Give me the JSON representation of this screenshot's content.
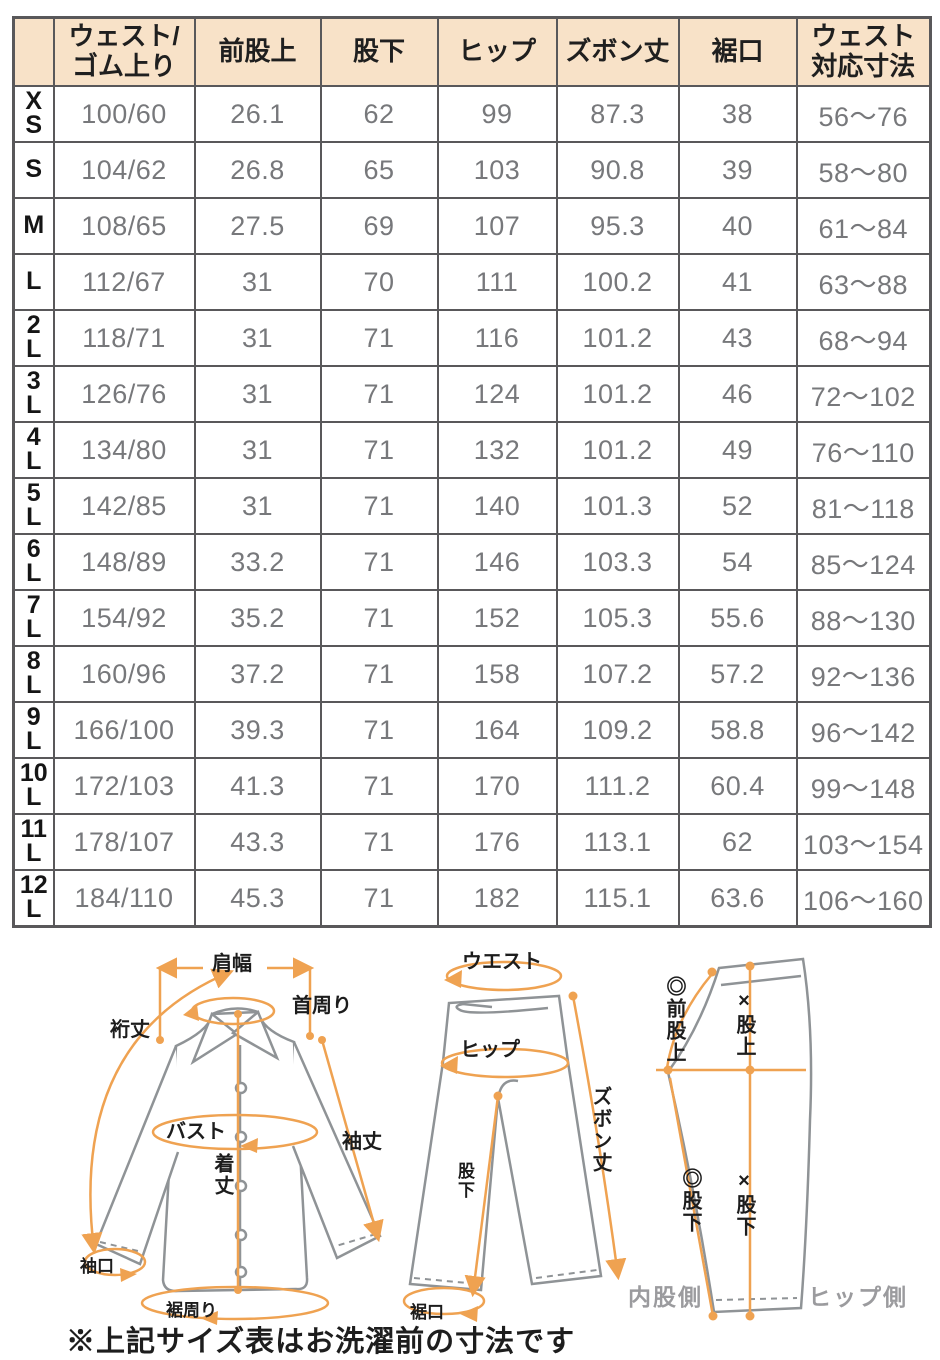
{
  "table": {
    "columns": [
      "",
      "ウェスト/\nゴム上り",
      "前股上",
      "股下",
      "ヒップ",
      "ズボン丈",
      "裾口",
      "ウェスト\n対応寸法"
    ],
    "rows": [
      {
        "size": "X\nS",
        "cells": [
          "100/60",
          "26.1",
          "62",
          "99",
          "87.3",
          "38",
          "56〜76"
        ]
      },
      {
        "size": "S",
        "cells": [
          "104/62",
          "26.8",
          "65",
          "103",
          "90.8",
          "39",
          "58〜80"
        ]
      },
      {
        "size": "M",
        "cells": [
          "108/65",
          "27.5",
          "69",
          "107",
          "95.3",
          "40",
          "61〜84"
        ]
      },
      {
        "size": "L",
        "cells": [
          "112/67",
          "31",
          "70",
          "111",
          "100.2",
          "41",
          "63〜88"
        ]
      },
      {
        "size": "2\nL",
        "cells": [
          "118/71",
          "31",
          "71",
          "116",
          "101.2",
          "43",
          "68〜94"
        ]
      },
      {
        "size": "3\nL",
        "cells": [
          "126/76",
          "31",
          "71",
          "124",
          "101.2",
          "46",
          "72〜102"
        ]
      },
      {
        "size": "4\nL",
        "cells": [
          "134/80",
          "31",
          "71",
          "132",
          "101.2",
          "49",
          "76〜110"
        ]
      },
      {
        "size": "5\nL",
        "cells": [
          "142/85",
          "31",
          "71",
          "140",
          "101.3",
          "52",
          "81〜118"
        ]
      },
      {
        "size": "6\nL",
        "cells": [
          "148/89",
          "33.2",
          "71",
          "146",
          "103.3",
          "54",
          "85〜124"
        ]
      },
      {
        "size": "7\nL",
        "cells": [
          "154/92",
          "35.2",
          "71",
          "152",
          "105.3",
          "55.6",
          "88〜130"
        ]
      },
      {
        "size": "8\nL",
        "cells": [
          "160/96",
          "37.2",
          "71",
          "158",
          "107.2",
          "57.2",
          "92〜136"
        ]
      },
      {
        "size": "9\nL",
        "cells": [
          "166/100",
          "39.3",
          "71",
          "164",
          "109.2",
          "58.8",
          "96〜142"
        ]
      },
      {
        "size": "10\nL",
        "cells": [
          "172/103",
          "41.3",
          "71",
          "170",
          "111.2",
          "60.4",
          "99〜148"
        ]
      },
      {
        "size": "11\nL",
        "cells": [
          "178/107",
          "43.3",
          "71",
          "176",
          "113.1",
          "62",
          "103〜154"
        ]
      },
      {
        "size": "12\nL",
        "cells": [
          "184/110",
          "45.3",
          "71",
          "182",
          "115.1",
          "63.6",
          "106〜160"
        ]
      }
    ]
  },
  "diagram": {
    "shirt": {
      "shoulder_width": "肩幅",
      "neck": "首周り",
      "yuki": "裄丈",
      "bust": "バスト",
      "sleeve_length": "袖丈",
      "body_length": "着丈",
      "cuff": "袖口",
      "hem_around": "裾周り"
    },
    "pants_front": {
      "waist": "ウエスト",
      "hip": "ヒップ",
      "pants_length": "ズボン丈",
      "inseam": "股下",
      "hem_opening": "裾口"
    },
    "pants_side": {
      "front_rise": "◎前股上",
      "rise": "×股上",
      "inseam_a": "◎股下",
      "inseam_b": "×股下",
      "inner_side": "内股側",
      "hip_side": "ヒップ側"
    }
  },
  "note": "※上記サイズ表はお洗濯前の寸法です",
  "colors": {
    "header_bg": "#f8e2c8",
    "border": "#59585a",
    "value_text": "#77787b",
    "accent_orange": "#efa251",
    "garment_gray": "#8f9396",
    "side_label_gray": "#9b9b9e"
  }
}
